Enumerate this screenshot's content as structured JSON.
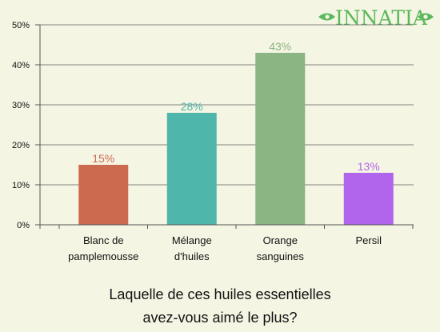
{
  "brand": {
    "logo_text": "INNATIA",
    "logo_color": "#5bb85b"
  },
  "question": {
    "line1": "Laquelle de ces huiles essentielles",
    "line2": "avez-vous aimé le plus?"
  },
  "chart_data": {
    "type": "bar",
    "categories": [
      [
        "Blanc de",
        "pamplemousse"
      ],
      [
        "Mélange",
        "d'huiles"
      ],
      [
        "Orange",
        "sanguines"
      ],
      [
        "Persil"
      ]
    ],
    "values": [
      15,
      28,
      43,
      13
    ],
    "value_labels": [
      "15%",
      "28%",
      "43%",
      "13%"
    ],
    "colors": [
      "#cc6a50",
      "#4fb6ac",
      "#8bb582",
      "#b065ec"
    ],
    "ylim": [
      0,
      50
    ],
    "yticks": [
      0,
      10,
      20,
      30,
      40,
      50
    ],
    "ytick_labels": [
      "0%",
      "10%",
      "20%",
      "30%",
      "40%",
      "50%"
    ],
    "grid": true,
    "legend": "none"
  }
}
